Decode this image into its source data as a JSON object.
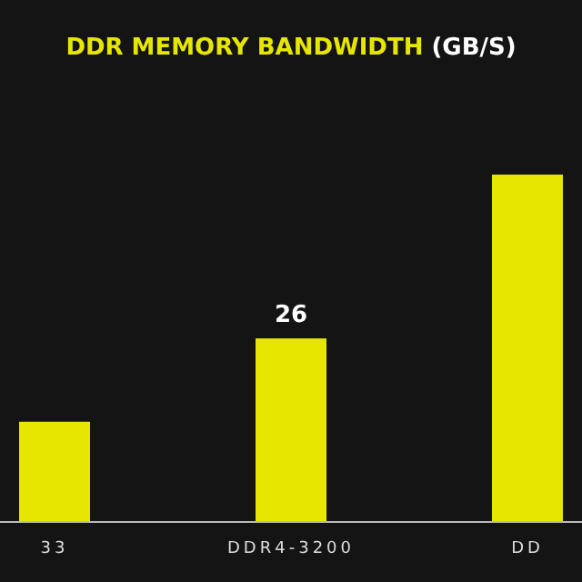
{
  "chart_data": {
    "type": "bar",
    "title": "DDR MEMORY BANDWIDTH (GB/S)",
    "categories": [
      "33",
      "DDR4-3200",
      "DD"
    ],
    "values": [
      14.2,
      26,
      49.2
    ],
    "color": "#e6e600",
    "value_labels": [
      null,
      "26",
      null
    ]
  }
}
